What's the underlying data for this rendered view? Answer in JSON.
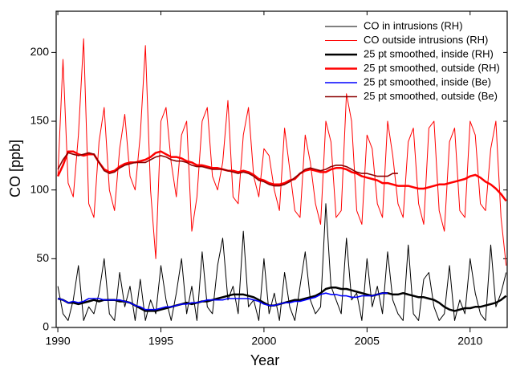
{
  "chart_data": {
    "type": "line",
    "x_label": "Year",
    "y_label": "CO [ppb]",
    "xlim": [
      1989.92,
      2011.8
    ],
    "ylim": [
      0,
      230
    ],
    "xticks": [
      1990,
      1995,
      2000,
      2005,
      2010
    ],
    "yticks": [
      0,
      50,
      100,
      150,
      200
    ],
    "legend": "upper right",
    "x": [
      1990,
      1990.25,
      1990.5,
      1990.75,
      1991,
      1991.25,
      1991.5,
      1991.75,
      1992,
      1992.25,
      1992.5,
      1992.75,
      1993,
      1993.25,
      1993.5,
      1993.75,
      1994,
      1994.25,
      1994.5,
      1994.75,
      1995,
      1995.25,
      1995.5,
      1995.75,
      1996,
      1996.25,
      1996.5,
      1996.75,
      1997,
      1997.25,
      1997.5,
      1997.75,
      1998,
      1998.25,
      1998.5,
      1998.75,
      1999,
      1999.25,
      1999.5,
      1999.75,
      2000,
      2000.25,
      2000.5,
      2000.75,
      2001,
      2001.25,
      2001.5,
      2001.75,
      2002,
      2002.25,
      2002.5,
      2002.75,
      2003,
      2003.25,
      2003.5,
      2003.75,
      2004,
      2004.25,
      2004.5,
      2004.75,
      2005,
      2005.25,
      2005.5,
      2005.75,
      2006,
      2006.25,
      2006.5,
      2006.75,
      2007,
      2007.25,
      2007.5,
      2007.75,
      2008,
      2008.25,
      2008.5,
      2008.75,
      2009,
      2009.25,
      2009.5,
      2009.75,
      2010,
      2010.25,
      2010.5,
      2010.75,
      2011,
      2011.25,
      2011.5,
      2011.75
    ],
    "series": [
      {
        "name": "CO in intrusions (RH)",
        "color": "#000000",
        "values": [
          30,
          10,
          5,
          20,
          45,
          5,
          15,
          10,
          25,
          50,
          10,
          5,
          40,
          15,
          30,
          5,
          35,
          5,
          20,
          10,
          45,
          20,
          5,
          25,
          50,
          10,
          30,
          5,
          55,
          15,
          10,
          45,
          65,
          20,
          30,
          10,
          70,
          15,
          20,
          5,
          50,
          10,
          25,
          5,
          40,
          15,
          5,
          30,
          55,
          20,
          10,
          15,
          90,
          30,
          20,
          10,
          65,
          20,
          25,
          5,
          50,
          15,
          30,
          10,
          55,
          20,
          10,
          5,
          60,
          10,
          5,
          35,
          40,
          15,
          5,
          10,
          45,
          5,
          20,
          10,
          50,
          25,
          10,
          5,
          60,
          15,
          25,
          40
        ]
      },
      {
        "name": "CO outside intrusions (RH)",
        "color": "#ff0000",
        "values": [
          110,
          195,
          105,
          95,
          140,
          210,
          90,
          80,
          135,
          160,
          100,
          85,
          130,
          155,
          110,
          100,
          140,
          205,
          100,
          50,
          150,
          160,
          120,
          95,
          140,
          150,
          70,
          95,
          150,
          160,
          110,
          100,
          120,
          165,
          95,
          90,
          140,
          160,
          110,
          95,
          130,
          125,
          100,
          85,
          145,
          115,
          85,
          80,
          140,
          120,
          90,
          75,
          150,
          135,
          80,
          85,
          170,
          150,
          85,
          75,
          140,
          130,
          90,
          80,
          150,
          125,
          90,
          80,
          135,
          145,
          90,
          75,
          145,
          150,
          85,
          70,
          135,
          145,
          85,
          80,
          150,
          140,
          90,
          85,
          130,
          150,
          80,
          45
        ]
      },
      {
        "name": "25 pt smoothed, inside (RH)",
        "color": "#000000",
        "values": [
          21,
          20,
          18,
          18,
          17,
          18,
          19,
          20,
          19,
          20,
          20,
          20,
          19,
          19,
          18,
          16,
          14,
          12,
          12,
          12,
          13,
          14,
          15,
          16,
          17,
          18,
          17,
          18,
          19,
          19,
          20,
          21,
          22,
          23,
          24,
          24,
          24,
          23,
          22,
          20,
          18,
          16,
          16,
          17,
          18,
          19,
          20,
          20,
          21,
          22,
          23,
          25,
          28,
          29,
          29,
          28,
          28,
          27,
          26,
          25,
          24,
          23,
          24,
          25,
          25,
          24,
          24,
          25,
          24,
          23,
          22,
          22,
          21,
          20,
          18,
          15,
          13,
          12,
          13,
          14,
          14,
          15,
          15,
          16,
          17,
          18,
          20,
          23
        ]
      },
      {
        "name": "25 pt smoothed, outside (RH)",
        "color": "#ff0000",
        "values": [
          110,
          118,
          128,
          128,
          126,
          125,
          126,
          126,
          120,
          115,
          113,
          114,
          117,
          119,
          120,
          120,
          121,
          122,
          124,
          127,
          128,
          126,
          124,
          124,
          123,
          121,
          120,
          118,
          118,
          117,
          116,
          116,
          115,
          114,
          114,
          113,
          114,
          113,
          111,
          108,
          107,
          105,
          104,
          104,
          105,
          107,
          108,
          112,
          114,
          115,
          114,
          113,
          113,
          115,
          116,
          116,
          115,
          113,
          112,
          110,
          109,
          108,
          107,
          105,
          105,
          104,
          103,
          103,
          103,
          102,
          101,
          101,
          102,
          103,
          104,
          104,
          105,
          106,
          107,
          108,
          110,
          111,
          109,
          106,
          104,
          101,
          97,
          92
        ]
      },
      {
        "name": "25 pt smoothed, inside (Be)",
        "color": "#0000ff",
        "values": [
          21,
          20,
          18,
          19,
          18,
          19,
          21,
          21,
          21,
          20,
          20,
          20,
          20,
          19,
          18,
          16,
          15,
          13,
          13,
          13,
          14,
          15,
          15,
          16,
          17,
          17,
          18,
          18,
          19,
          20,
          20,
          20,
          20,
          21,
          21,
          21,
          21,
          21,
          20,
          19,
          17,
          16,
          16,
          17,
          18,
          18,
          19,
          19,
          20,
          21,
          22,
          24,
          25,
          24,
          24,
          23,
          23,
          22,
          22,
          23,
          23,
          23,
          24,
          25,
          25,
          null,
          null,
          null,
          null,
          null,
          null,
          null,
          null,
          null,
          null,
          null,
          null,
          null,
          null,
          null,
          null,
          null,
          null,
          null,
          null,
          null,
          null,
          null
        ]
      },
      {
        "name": "25 pt smoothed, outside (Be)",
        "color": "#8b0000",
        "values": [
          115,
          122,
          127,
          126,
          125,
          126,
          127,
          126,
          120,
          114,
          112,
          113,
          116,
          118,
          119,
          120,
          120,
          120,
          122,
          124,
          125,
          124,
          122,
          121,
          121,
          120,
          118,
          117,
          117,
          116,
          115,
          115,
          115,
          114,
          113,
          112,
          113,
          112,
          110,
          107,
          106,
          104,
          103,
          103,
          104,
          106,
          109,
          112,
          115,
          116,
          115,
          114,
          115,
          117,
          118,
          118,
          117,
          115,
          113,
          112,
          112,
          111,
          110,
          110,
          110,
          112,
          112,
          null,
          null,
          null,
          null,
          null,
          null,
          null,
          null,
          null,
          null,
          null,
          null,
          null,
          null,
          null,
          null,
          null,
          null,
          null,
          null,
          null
        ]
      }
    ]
  }
}
